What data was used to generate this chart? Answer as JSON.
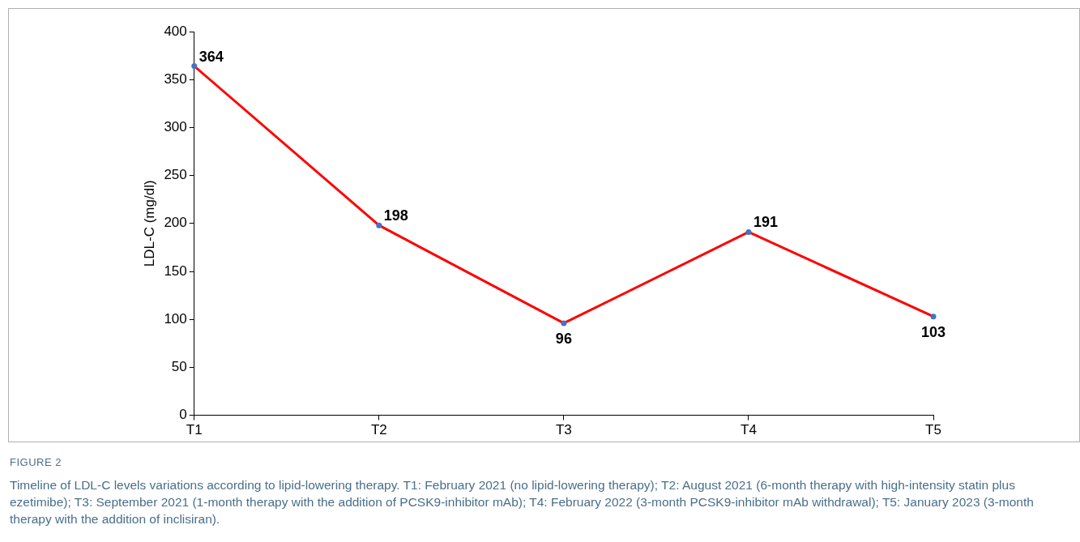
{
  "chart_data": {
    "type": "line",
    "title": "FIGURE 2",
    "categories": [
      "T1",
      "T2",
      "T3",
      "T4",
      "T5"
    ],
    "series": [
      {
        "color": "#ff0000",
        "colors": [
          "#4472c4",
          "#4472c4",
          "#4472c4",
          "#4472c4",
          "#4472c4"
        ],
        "values": [
          364,
          198,
          96,
          191,
          103
        ]
      }
    ],
    "ylabel": "LDL-C (mg/dl)",
    "ylim": [
      0,
      400
    ],
    "yticks": [
      0,
      50,
      100,
      150,
      200,
      250,
      300,
      350,
      400
    ],
    "grid": false,
    "legend": false,
    "marker": "circle",
    "line_style": "solid",
    "data_labels": true,
    "annotations": [
      "Timeline of LDL-C levels variations according to lipid-lowering therapy. T1: February 2021 (no lipid-lowering therapy); T2: August 2021 (6-month therapy with high-intensity statin plus ezetimibe); T3: September 2021 (1-month therapy with the addition of PCSK9-inhibitor mAb); T4: February 2022 (3-month PCSK9-inhibitor mAb withdrawal); T5: January 2023 (3-month therapy with the addition of inclisiran)."
    ]
  }
}
